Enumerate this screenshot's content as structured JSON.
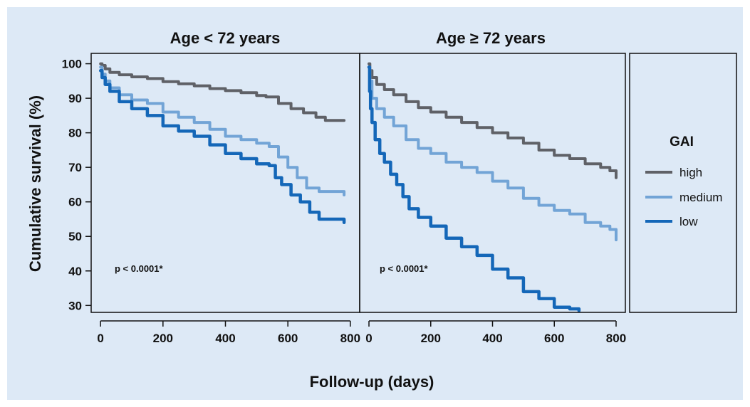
{
  "chart_data": {
    "type": "line",
    "ylabel": "Cumulative survival (%)",
    "xlabel": "Follow-up (days)",
    "ylim": [
      28,
      103
    ],
    "xlim": [
      -30,
      830
    ],
    "yticks": [
      30,
      40,
      50,
      60,
      70,
      80,
      90,
      100
    ],
    "xticks": [
      0,
      200,
      400,
      600,
      800
    ],
    "colors": {
      "high": "#5f6167",
      "medium": "#72a4d6",
      "low": "#1467b8",
      "background": "#dde9f6",
      "frame": "#111111"
    },
    "legend": {
      "title": "GAI",
      "placement": "right panel",
      "items": [
        {
          "key": "high",
          "label": "high"
        },
        {
          "key": "medium",
          "label": "medium"
        },
        {
          "key": "low",
          "label": "low"
        }
      ]
    },
    "panels": [
      {
        "title": "Age < 72 years",
        "annotation": "p < 0.0001*",
        "series": [
          {
            "key": "high",
            "x": [
              0,
              5,
              15,
              30,
              60,
              100,
              150,
              200,
              250,
              300,
              350,
              400,
              450,
              500,
              530,
              570,
              610,
              650,
              690,
              720,
              780
            ],
            "y": [
              100,
              99.5,
              98.5,
              97.5,
              96.8,
              96.2,
              95.7,
              94.8,
              94.2,
              93.6,
              92.8,
              92.2,
              91.6,
              90.8,
              90.4,
              88.5,
              87,
              85.8,
              84.5,
              83.6,
              83.6
            ]
          },
          {
            "key": "medium",
            "x": [
              0,
              5,
              15,
              30,
              60,
              100,
              150,
              200,
              250,
              300,
              350,
              400,
              450,
              500,
              540,
              570,
              600,
              630,
              660,
              700,
              780
            ],
            "y": [
              99,
              97,
              95,
              93,
              91,
              89.5,
              88.5,
              86,
              84.5,
              83,
              81,
              79,
              78,
              77,
              76,
              73,
              70,
              67,
              64,
              63,
              62
            ]
          },
          {
            "key": "low",
            "x": [
              0,
              5,
              15,
              30,
              60,
              100,
              150,
              200,
              250,
              300,
              350,
              400,
              450,
              500,
              540,
              560,
              580,
              610,
              640,
              670,
              700,
              780
            ],
            "y": [
              98,
              96,
              94,
              92,
              89,
              87,
              85,
              82,
              80.5,
              79,
              76.5,
              74,
              72.5,
              71,
              70.5,
              67,
              65,
              62,
              60,
              57,
              55,
              54
            ]
          }
        ]
      },
      {
        "title": "Age ≥ 72 years",
        "annotation": "p < 0.0001*",
        "series": [
          {
            "key": "high",
            "x": [
              0,
              3,
              10,
              25,
              50,
              80,
              120,
              160,
              200,
              250,
              300,
              350,
              400,
              450,
              500,
              550,
              600,
              650,
              700,
              750,
              780,
              800
            ],
            "y": [
              100,
              98,
              96,
              94,
              92.5,
              91,
              89,
              87.3,
              86,
              84.5,
              83,
              81.5,
              80,
              78.5,
              77,
              75,
              73.5,
              72.5,
              71,
              70,
              69,
              67
            ]
          },
          {
            "key": "medium",
            "x": [
              0,
              3,
              10,
              25,
              50,
              80,
              120,
              160,
              200,
              250,
              300,
              350,
              400,
              450,
              500,
              550,
              600,
              650,
              700,
              750,
              780,
              800
            ],
            "y": [
              99,
              95,
              90,
              87,
              84.5,
              82,
              78,
              75.5,
              74,
              71.5,
              70,
              68.5,
              66,
              64,
              61,
              59,
              57.5,
              56.5,
              54,
              53,
              52,
              49
            ]
          },
          {
            "key": "low",
            "x": [
              0,
              2,
              5,
              10,
              20,
              35,
              50,
              70,
              90,
              110,
              130,
              160,
              200,
              250,
              300,
              350,
              400,
              450,
              500,
              550,
              600,
              650,
              680
            ],
            "y": [
              99,
              92,
              87,
              83,
              78,
              74,
              71.5,
              68,
              65,
              61.5,
              58,
              55.5,
              53,
              49.5,
              47,
              44.5,
              40.5,
              38,
              34,
              32,
              29.5,
              29,
              28.5
            ]
          }
        ]
      }
    ]
  }
}
